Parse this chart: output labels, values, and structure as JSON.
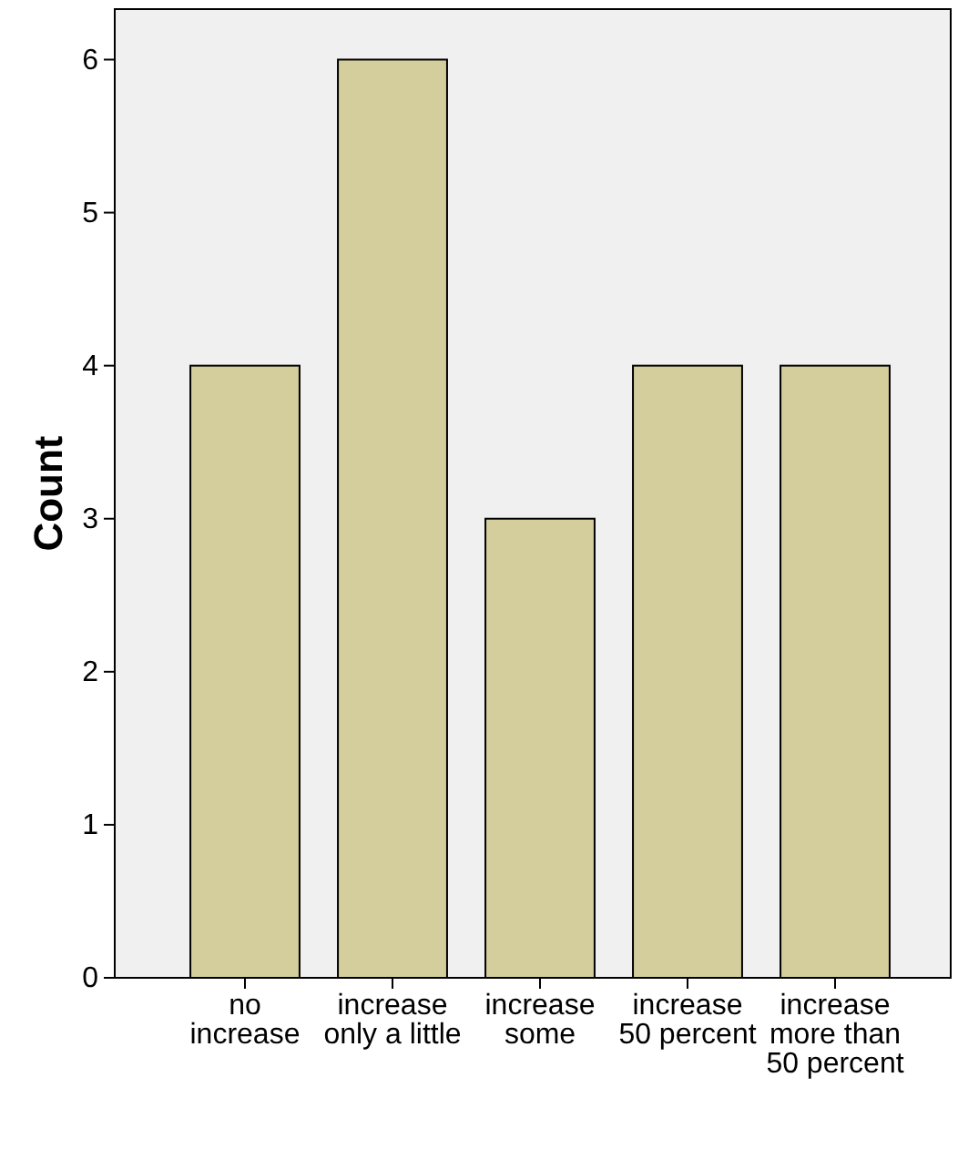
{
  "chart_data": {
    "type": "bar",
    "ylabel": "Count",
    "categories": [
      "no increase",
      "increase only a little",
      "increase some",
      "increase 50 percent",
      "increase more than 50 percent"
    ],
    "values": [
      4,
      6,
      3,
      4,
      4
    ],
    "color": "#d3ce9b",
    "ylim": [
      0,
      6.33
    ],
    "yticks": [
      0,
      1,
      2,
      3,
      4,
      5,
      6
    ],
    "grid": false
  }
}
